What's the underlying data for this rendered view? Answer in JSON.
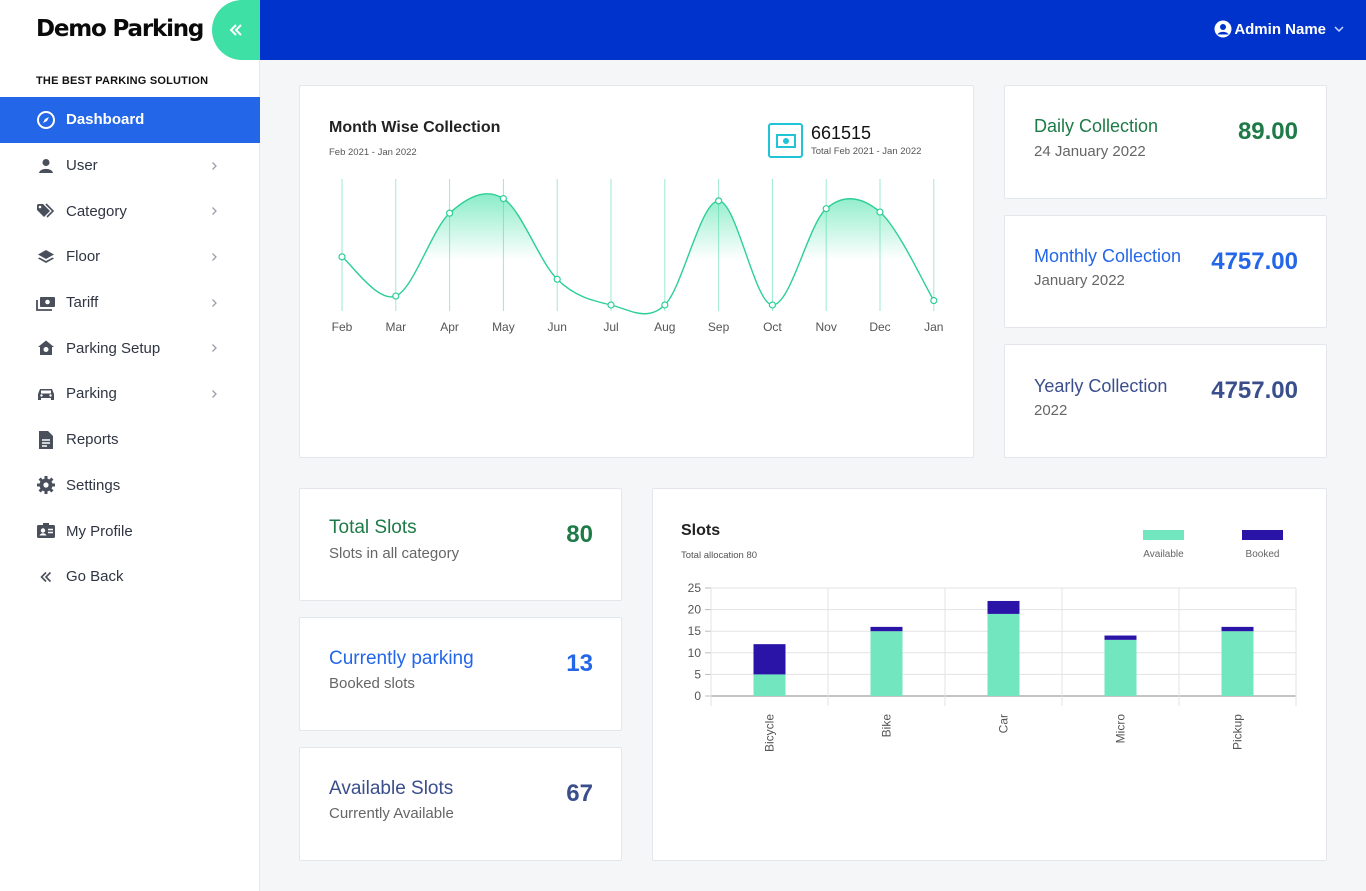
{
  "brand": {
    "title": "Demo Parking",
    "tagline": "THE BEST PARKING SOLUTION"
  },
  "sidebar": {
    "items": [
      {
        "label": "Dashboard",
        "icon": "compass-icon",
        "active": true,
        "has_submenu": false
      },
      {
        "label": "User",
        "icon": "user-icon",
        "has_submenu": true
      },
      {
        "label": "Category",
        "icon": "tags-icon",
        "has_submenu": true
      },
      {
        "label": "Floor",
        "icon": "layers-icon",
        "has_submenu": true
      },
      {
        "label": "Tariff",
        "icon": "money-icon",
        "has_submenu": true
      },
      {
        "label": "Parking Setup",
        "icon": "home-gear-icon",
        "has_submenu": true
      },
      {
        "label": "Parking",
        "icon": "car-icon",
        "has_submenu": true
      },
      {
        "label": "Reports",
        "icon": "document-icon",
        "has_submenu": false
      },
      {
        "label": "Settings",
        "icon": "gear-icon",
        "has_submenu": false
      },
      {
        "label": "My Profile",
        "icon": "id-card-icon",
        "has_submenu": false
      },
      {
        "label": "Go Back",
        "icon": "double-chevron-left-icon",
        "has_submenu": false
      }
    ]
  },
  "topbar": {
    "user_name": "Admin Name"
  },
  "colors": {
    "topbar": "#0033cc",
    "active": "#2366e8",
    "accent": "#3ee0a5",
    "available": "#72e6be",
    "booked": "#2a14a8",
    "green": "#1e7a46",
    "navy": "#3a4e8c"
  },
  "month_chart": {
    "title": "Month Wise Collection",
    "subtitle": "Feb 2021 - Jan 2022",
    "total_value": "661515",
    "total_label": "Total Feb 2021 - Jan 2022"
  },
  "daily": {
    "title": "Daily Collection",
    "subtitle": "24 January 2022",
    "value": "89.00"
  },
  "monthly": {
    "title": "Monthly Collection",
    "subtitle": "January 2022",
    "value": "4757.00"
  },
  "yearly": {
    "title": "Yearly Collection",
    "subtitle": "2022",
    "value": "4757.00"
  },
  "total_slots": {
    "title": "Total Slots",
    "subtitle": "Slots in all category",
    "value": "80"
  },
  "current_parking": {
    "title": "Currently parking",
    "subtitle": "Booked slots",
    "value": "13"
  },
  "available_slots": {
    "title": "Available Slots",
    "subtitle": "Currently Available",
    "value": "67"
  },
  "slots_chart": {
    "title": "Slots",
    "subtitle": "Total allocation 80",
    "legend_available": "Available",
    "legend_booked": "Booked"
  },
  "chart_data": [
    {
      "type": "area",
      "title": "Month Wise Collection",
      "categories": [
        "Feb",
        "Mar",
        "Apr",
        "May",
        "Jun",
        "Jul",
        "Aug",
        "Sep",
        "Oct",
        "Nov",
        "Dec",
        "Jan"
      ],
      "values": [
        0.43,
        0.08,
        0.82,
        0.95,
        0.23,
        0.0,
        0.0,
        0.93,
        0.0,
        0.86,
        0.83,
        0.04
      ],
      "value_scale": "relative",
      "grid": true,
      "legend": "none"
    },
    {
      "type": "bar",
      "stacked": true,
      "title": "Slots",
      "categories": [
        "Bicycle",
        "Bike",
        "Car",
        "Micro",
        "Pickup"
      ],
      "series": [
        {
          "name": "Available",
          "values": [
            5,
            15,
            19,
            13,
            15
          ]
        },
        {
          "name": "Booked",
          "values": [
            7,
            1,
            3,
            1,
            1
          ]
        }
      ],
      "ylim": [
        0,
        25
      ],
      "yticks": [
        0,
        5,
        10,
        15,
        20,
        25
      ],
      "grid": true,
      "legend": "top-right"
    }
  ]
}
